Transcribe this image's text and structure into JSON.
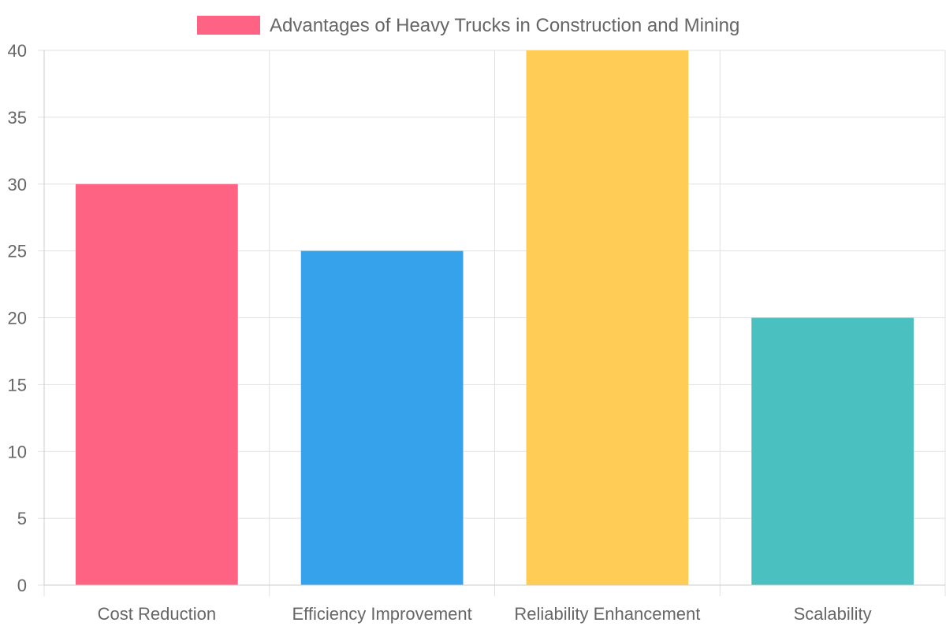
{
  "chart_data": {
    "type": "bar",
    "categories": [
      "Cost Reduction",
      "Efficiency Improvement",
      "Reliability Enhancement",
      "Scalability"
    ],
    "series": [
      {
        "name": "Advantages of Heavy Trucks in Construction and Mining",
        "values": [
          30,
          25,
          40,
          20
        ]
      }
    ],
    "bar_colors": [
      "#ff6384",
      "#36a2eb",
      "#ffcd56",
      "#4bc0c0"
    ],
    "legend_color": "#ff6384",
    "ylim": [
      0,
      40
    ],
    "yticks": [
      0,
      5,
      10,
      15,
      20,
      25,
      30,
      35,
      40
    ],
    "grid": true,
    "legend_position": "top"
  }
}
